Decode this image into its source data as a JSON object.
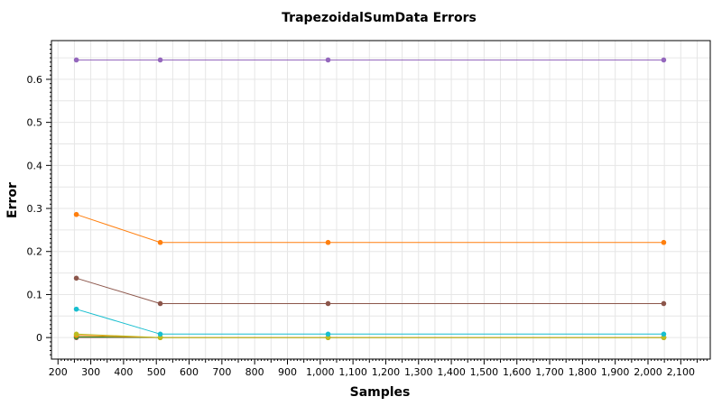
{
  "chart_data": {
    "type": "line",
    "title": "TrapezoidalSumData Errors",
    "xlabel": "Samples",
    "ylabel": "Error",
    "xlim": [
      180,
      2190
    ],
    "ylim": [
      -0.05,
      0.69
    ],
    "xticks": [
      200,
      300,
      400,
      500,
      600,
      700,
      800,
      900,
      1000,
      1100,
      1200,
      1300,
      1400,
      1500,
      1600,
      1700,
      1800,
      1900,
      2000,
      2100
    ],
    "xtick_labels": [
      "200",
      "300",
      "400",
      "500",
      "600",
      "700",
      "800",
      "900",
      "1,000",
      "1,100",
      "1,200",
      "1,300",
      "1,400",
      "1,500",
      "1,600",
      "1,700",
      "1,800",
      "1,900",
      "2,000",
      "2,100"
    ],
    "yticks": [
      0,
      0.1,
      0.2,
      0.3,
      0.4,
      0.5,
      0.6
    ],
    "ytick_labels": [
      "0",
      "0.1",
      "0.2",
      "0.3",
      "0.4",
      "0.5",
      "0.6"
    ],
    "grid": true,
    "x": [
      256,
      512,
      1024,
      2048
    ],
    "series": [
      {
        "values": [
          0.645,
          0.645,
          0.645,
          0.645
        ],
        "color": "#9467bd"
      },
      {
        "values": [
          0.286,
          0.221,
          0.221,
          0.221
        ],
        "color": "#ff7f0e"
      },
      {
        "values": [
          0.138,
          0.079,
          0.079,
          0.079
        ],
        "color": "#8c564b"
      },
      {
        "values": [
          0.066,
          0.008,
          0.008,
          0.008
        ],
        "color": "#17becf"
      },
      {
        "values": [
          0.008,
          0.0,
          0.0,
          0.0
        ],
        "color": "#bcbd22"
      },
      {
        "values": [
          0.005,
          0.0,
          0.0,
          0.0
        ],
        "color": "#ff7f0e"
      },
      {
        "values": [
          0.002,
          0.0,
          0.0,
          0.0
        ],
        "color": "#2ca02c"
      },
      {
        "values": [
          0.0,
          0.0,
          0.0,
          0.0
        ],
        "color": "#8c564b"
      }
    ]
  }
}
